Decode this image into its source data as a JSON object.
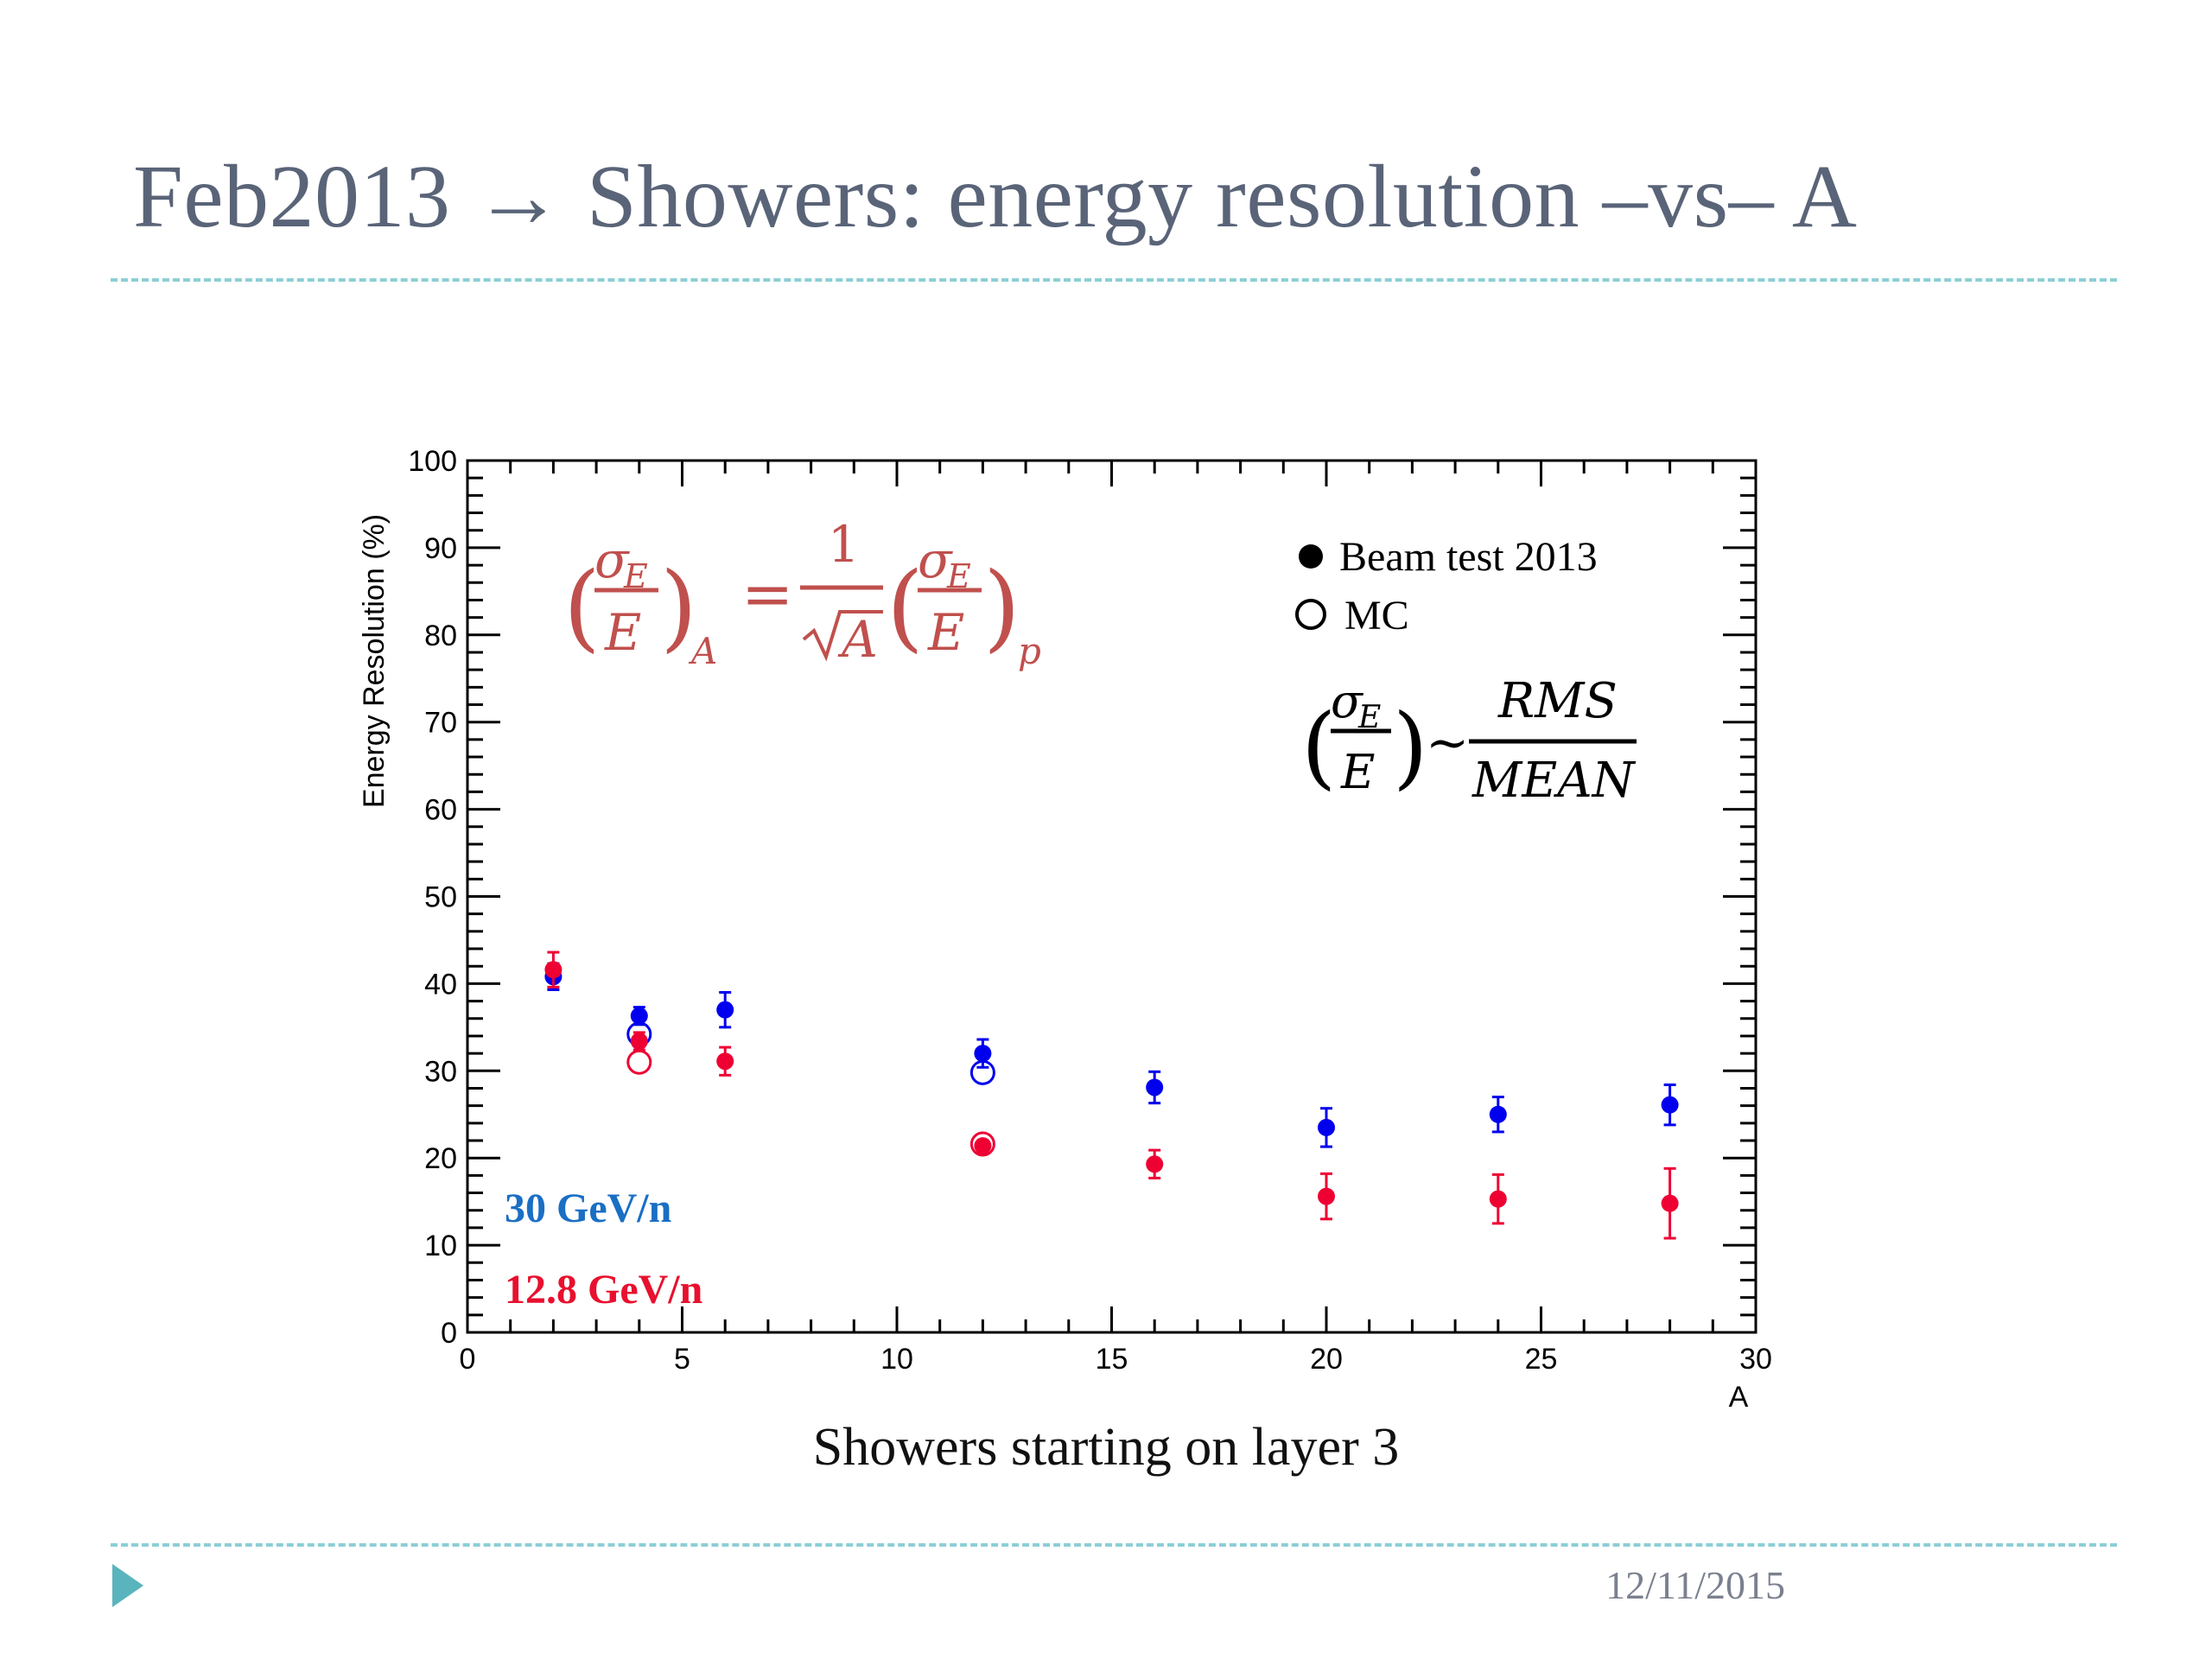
{
  "slide": {
    "title": "Feb2013 → Showers: energy resolution  –vs– A",
    "caption": "Showers starting on layer 3",
    "date": "12/11/2015",
    "nav_icon": "triangle-right-icon",
    "accent_color": "#5ab4bd"
  },
  "chart_data": {
    "type": "scatter",
    "title": "",
    "xlabel": "A",
    "ylabel": "Energy Resolution (%)",
    "xlim": [
      0,
      30
    ],
    "ylim": [
      0,
      100
    ],
    "x_ticks": [
      "0",
      "5",
      "10",
      "15",
      "20",
      "25",
      "30"
    ],
    "y_ticks": [
      "0",
      "10",
      "20",
      "30",
      "40",
      "50",
      "60",
      "70",
      "80",
      "90",
      "100"
    ],
    "grid": false,
    "legend": {
      "placement": "top-right",
      "entries": [
        {
          "label": "Beam test 2013",
          "marker": "filled-circle"
        },
        {
          "label": "MC",
          "marker": "open-circle"
        }
      ]
    },
    "energy_labels": [
      {
        "text": "30 GeV/n",
        "color": "#1a6fc4"
      },
      {
        "text": "12.8 GeV/n",
        "color": "#e8102e"
      }
    ],
    "formula_1": {
      "lhs_num": "σ",
      "lhs_sub": "E",
      "lhs_den": "E",
      "lhs_outer_sub": "A",
      "eq": "=",
      "one": "1",
      "sqrt_arg": "A",
      "rhs_num": "σ",
      "rhs_sub": "E",
      "rhs_den": "E",
      "rhs_outer_sub": "p",
      "color": "#c0504d"
    },
    "formula_2": {
      "num": "σ",
      "sub": "E",
      "den": "E",
      "tilde": "~",
      "rms": "RMS",
      "mean": "MEAN"
    },
    "series": [
      {
        "energy": "30 GeV/n",
        "kind": "Beam test 2013",
        "color": "#0000ee",
        "filled": true,
        "points": [
          {
            "x": 2,
            "y": 40.8,
            "err": 1.5
          },
          {
            "x": 4,
            "y": 36.3,
            "err": 1.0
          },
          {
            "x": 6,
            "y": 37.0,
            "err": 2.0
          },
          {
            "x": 12,
            "y": 32.0,
            "err": 1.6
          },
          {
            "x": 16,
            "y": 28.1,
            "err": 1.8
          },
          {
            "x": 20,
            "y": 23.5,
            "err": 2.2
          },
          {
            "x": 24,
            "y": 25.0,
            "err": 2.0
          },
          {
            "x": 28,
            "y": 26.1,
            "err": 2.3
          }
        ]
      },
      {
        "energy": "30 GeV/n",
        "kind": "MC",
        "color": "#0000ee",
        "filled": false,
        "points": [
          {
            "x": 4,
            "y": 34.2,
            "err": 0
          },
          {
            "x": 12,
            "y": 29.8,
            "err": 0
          }
        ]
      },
      {
        "energy": "12.8 GeV/n",
        "kind": "Beam test 2013",
        "color": "#ee0033",
        "filled": true,
        "points": [
          {
            "x": 2,
            "y": 41.6,
            "err": 2.0
          },
          {
            "x": 4,
            "y": 33.4,
            "err": 1.0
          },
          {
            "x": 6,
            "y": 31.1,
            "err": 1.6
          },
          {
            "x": 12,
            "y": 21.4,
            "err": 0.6
          },
          {
            "x": 16,
            "y": 19.3,
            "err": 1.6
          },
          {
            "x": 20,
            "y": 15.6,
            "err": 2.6
          },
          {
            "x": 24,
            "y": 15.3,
            "err": 2.8
          },
          {
            "x": 28,
            "y": 14.8,
            "err": 4.0
          }
        ]
      },
      {
        "energy": "12.8 GeV/n",
        "kind": "MC",
        "color": "#ee0033",
        "filled": false,
        "points": [
          {
            "x": 4,
            "y": 31.0,
            "err": 0
          },
          {
            "x": 12,
            "y": 21.6,
            "err": 0
          }
        ]
      }
    ]
  }
}
